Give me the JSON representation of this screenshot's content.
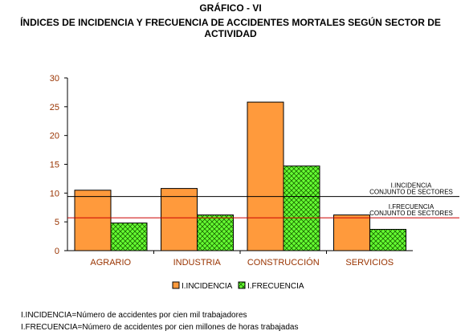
{
  "header": {
    "title": "GRÁFICO - VI",
    "subtitle": "ÍNDICES DE INCIDENCIA Y FRECUENCIA DE ACCIDENTES MORTALES SEGÚN SECTOR DE ACTIVIDAD"
  },
  "chart_data": {
    "type": "bar",
    "categories": [
      "AGRARIO",
      "INDUSTRIA",
      "CONSTRUCCIÓN",
      "SERVICIOS"
    ],
    "series": [
      {
        "name": "I.INCIDENCIA",
        "values": [
          10.5,
          10.8,
          25.8,
          6.2
        ],
        "color": "#ff9a3c",
        "pattern": "solid"
      },
      {
        "name": "I.FRECUENCIA",
        "values": [
          4.8,
          6.2,
          14.7,
          3.7
        ],
        "color": "#66ff33",
        "pattern": "crosshatch"
      }
    ],
    "ylim": [
      0,
      30
    ],
    "yticks": [
      0,
      5,
      10,
      15,
      20,
      25,
      30
    ],
    "reference_lines": [
      {
        "value": 9.4,
        "color": "#000000",
        "label_line1": "I.INCIDENCIA",
        "label_line2": "CONJUNTO DE SECTORES"
      },
      {
        "value": 5.7,
        "color": "#cc0000",
        "label_line1": "I.FRECUENCIA",
        "label_line2": "CONJUNTO DE SECTORES"
      }
    ],
    "tick_label_color": "#993300",
    "legend_position": "bottom",
    "grid": false
  },
  "notes": {
    "incidencia": "I.INCIDENCIA=Número de accidentes por cien mil trabajadores",
    "frecuencia": "I.FRECUENCIA=Número de accidentes por cien millones de horas trabajadas"
  }
}
